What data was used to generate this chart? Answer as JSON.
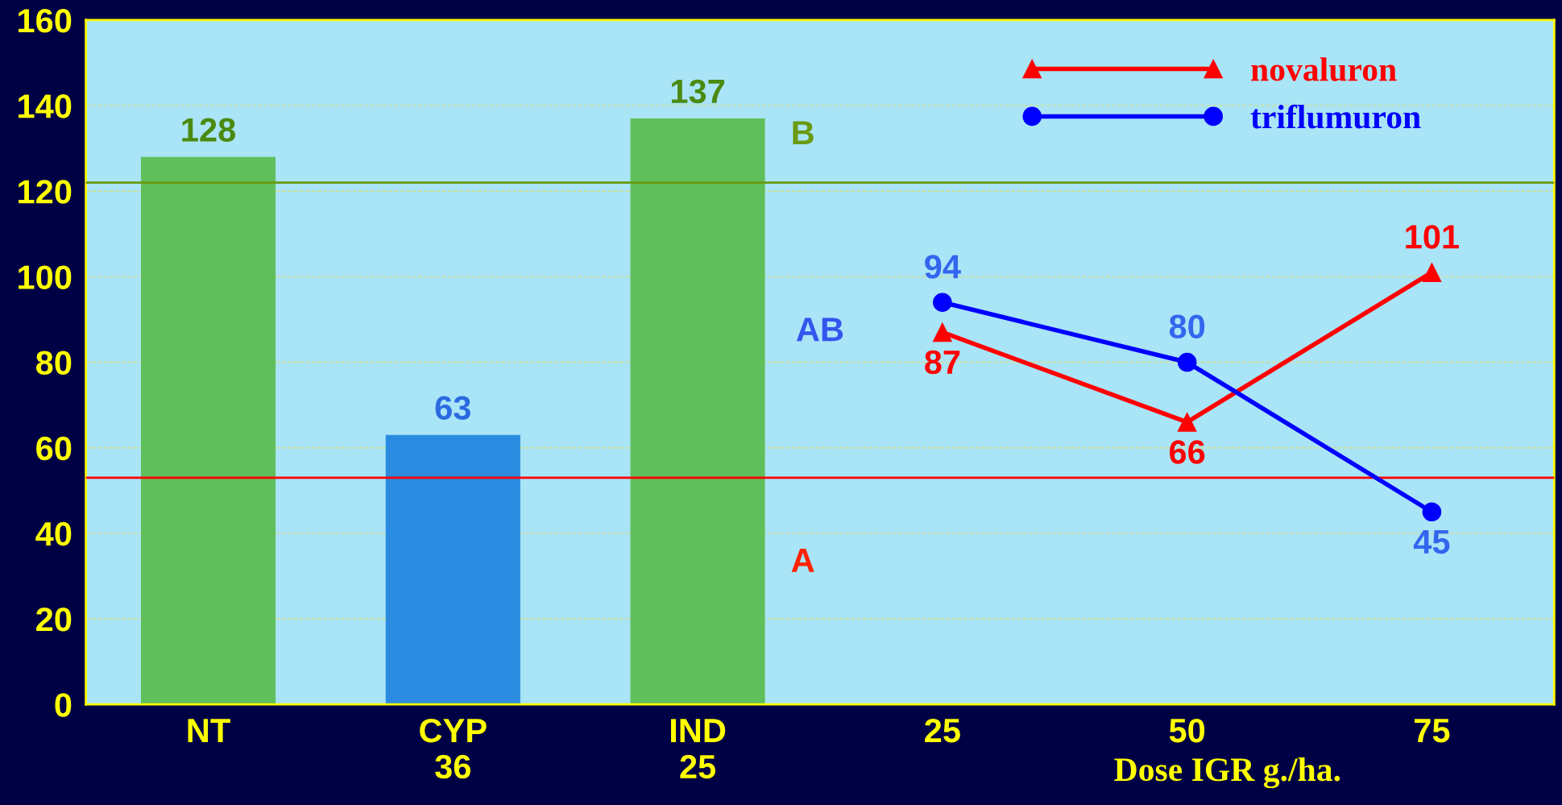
{
  "chart_data": {
    "type": "bar",
    "categories": [
      "NT",
      "CYP\n36",
      "IND\n25",
      "25",
      "50",
      "75"
    ],
    "xlabel": "Dose IGR g./ha.",
    "values": [
      128,
      63,
      137,
      null,
      null,
      null
    ],
    "colors": [
      "#5fbf5a",
      "#2a8be0",
      "#5fbf5a",
      null,
      null,
      null
    ],
    "series": [
      {
        "name": "novaluron",
        "type": "line",
        "color": "#ff0000",
        "marker": "triangle",
        "values": [
          null,
          null,
          null,
          87,
          66,
          101
        ]
      },
      {
        "name": "triflumuron",
        "type": "line",
        "color": "#0000ff",
        "marker": "circle",
        "values": [
          null,
          null,
          null,
          94,
          80,
          45
        ]
      }
    ],
    "data_labels": true,
    "ylim": [
      0,
      160
    ],
    "yticks": [
      0,
      20,
      40,
      60,
      80,
      100,
      120,
      140,
      160
    ],
    "grid": "y",
    "legend": "top right",
    "ref_lines": [
      {
        "axis": "y",
        "value": 122,
        "color": "#6a9a10"
      },
      {
        "axis": "y",
        "value": 53,
        "color": "#ff0000"
      }
    ],
    "annotations": [
      "B",
      "AB",
      "A"
    ]
  }
}
